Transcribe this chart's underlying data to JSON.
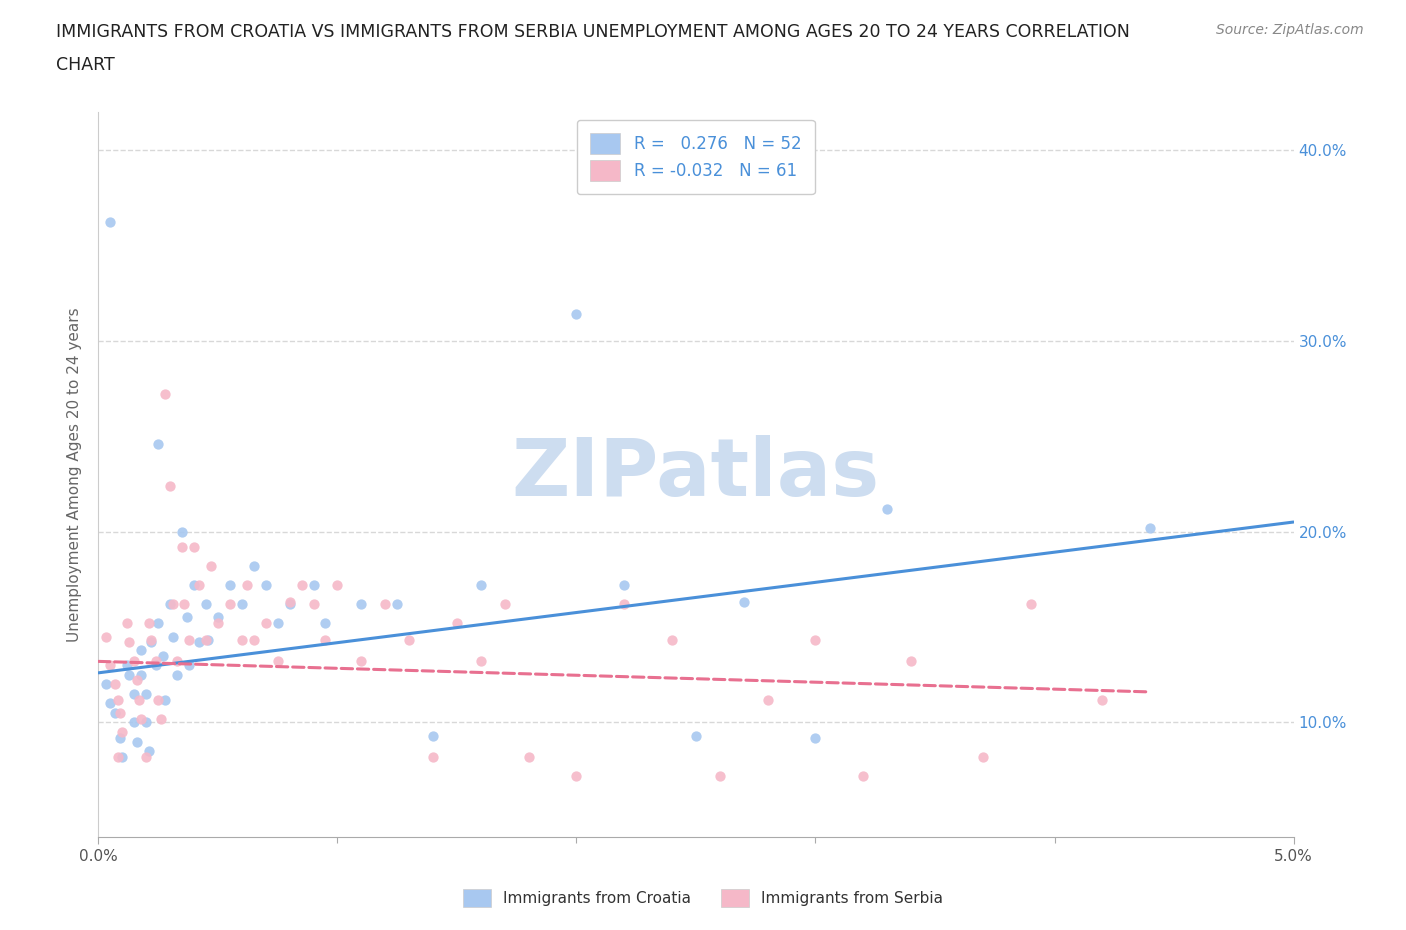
{
  "title_line1": "IMMIGRANTS FROM CROATIA VS IMMIGRANTS FROM SERBIA UNEMPLOYMENT AMONG AGES 20 TO 24 YEARS CORRELATION",
  "title_line2": "CHART",
  "source": "Source: ZipAtlas.com",
  "ylabel": "Unemployment Among Ages 20 to 24 years",
  "xlim": [
    0.0,
    0.05
  ],
  "ylim": [
    0.04,
    0.42
  ],
  "xticks_major": [
    0.0,
    0.05
  ],
  "xticks_minor": [
    0.01,
    0.02,
    0.03,
    0.04
  ],
  "xticklabels_major": [
    "0.0%",
    "5.0%"
  ],
  "ytick_positions": [
    0.1,
    0.2,
    0.3,
    0.4
  ],
  "yticklabels": [
    "10.0%",
    "20.0%",
    "30.0%",
    "40.0%"
  ],
  "background_color": "#ffffff",
  "watermark_text": "ZIPatlas",
  "watermark_color": "#cdddf0",
  "croatia_color": "#a8c8f0",
  "serbia_color": "#f5b8c8",
  "croatia_line_color": "#4a90d9",
  "serbia_line_color": "#e87090",
  "croatia_R": 0.276,
  "croatia_N": 52,
  "serbia_R": -0.032,
  "serbia_N": 61,
  "grid_color": "#d8d8d8",
  "croatia_scatter_x": [
    0.0003,
    0.0005,
    0.0007,
    0.0009,
    0.001,
    0.0012,
    0.0013,
    0.0015,
    0.0015,
    0.0016,
    0.0018,
    0.0018,
    0.002,
    0.002,
    0.0021,
    0.0022,
    0.0024,
    0.0025,
    0.0025,
    0.0027,
    0.0028,
    0.003,
    0.0031,
    0.0033,
    0.0035,
    0.0037,
    0.0038,
    0.004,
    0.0042,
    0.0045,
    0.0046,
    0.005,
    0.0055,
    0.006,
    0.0065,
    0.007,
    0.0075,
    0.008,
    0.009,
    0.0095,
    0.011,
    0.0125,
    0.014,
    0.016,
    0.02,
    0.022,
    0.025,
    0.027,
    0.03,
    0.033,
    0.044,
    0.0005
  ],
  "croatia_scatter_y": [
    0.12,
    0.11,
    0.105,
    0.092,
    0.082,
    0.13,
    0.125,
    0.115,
    0.1,
    0.09,
    0.138,
    0.125,
    0.115,
    0.1,
    0.085,
    0.142,
    0.13,
    0.246,
    0.152,
    0.135,
    0.112,
    0.162,
    0.145,
    0.125,
    0.2,
    0.155,
    0.13,
    0.172,
    0.142,
    0.162,
    0.143,
    0.155,
    0.172,
    0.162,
    0.182,
    0.172,
    0.152,
    0.162,
    0.172,
    0.152,
    0.162,
    0.162,
    0.093,
    0.172,
    0.314,
    0.172,
    0.093,
    0.163,
    0.092,
    0.212,
    0.202,
    0.362
  ],
  "serbia_scatter_x": [
    0.0003,
    0.0005,
    0.0007,
    0.0008,
    0.0009,
    0.001,
    0.0012,
    0.0013,
    0.0015,
    0.0016,
    0.0017,
    0.0018,
    0.002,
    0.0021,
    0.0022,
    0.0024,
    0.0025,
    0.0026,
    0.0028,
    0.003,
    0.0031,
    0.0033,
    0.0035,
    0.0036,
    0.0038,
    0.004,
    0.0042,
    0.0045,
    0.0047,
    0.005,
    0.0055,
    0.006,
    0.0062,
    0.0065,
    0.007,
    0.0075,
    0.008,
    0.0085,
    0.009,
    0.0095,
    0.01,
    0.011,
    0.012,
    0.013,
    0.014,
    0.015,
    0.016,
    0.017,
    0.018,
    0.02,
    0.022,
    0.024,
    0.026,
    0.028,
    0.03,
    0.032,
    0.034,
    0.037,
    0.039,
    0.042,
    0.0008
  ],
  "serbia_scatter_y": [
    0.145,
    0.13,
    0.12,
    0.112,
    0.105,
    0.095,
    0.152,
    0.142,
    0.132,
    0.122,
    0.112,
    0.102,
    0.082,
    0.152,
    0.143,
    0.132,
    0.112,
    0.102,
    0.272,
    0.224,
    0.162,
    0.132,
    0.192,
    0.162,
    0.143,
    0.192,
    0.172,
    0.143,
    0.182,
    0.152,
    0.162,
    0.143,
    0.172,
    0.143,
    0.152,
    0.132,
    0.163,
    0.172,
    0.162,
    0.143,
    0.172,
    0.132,
    0.162,
    0.143,
    0.082,
    0.152,
    0.132,
    0.162,
    0.082,
    0.072,
    0.162,
    0.143,
    0.072,
    0.112,
    0.143,
    0.072,
    0.132,
    0.082,
    0.162,
    0.112,
    0.082
  ],
  "croatia_trendline_x": [
    0.0,
    0.05
  ],
  "croatia_trendline_y": [
    0.126,
    0.205
  ],
  "serbia_trendline_x": [
    0.0,
    0.044
  ],
  "serbia_trendline_y": [
    0.132,
    0.116
  ],
  "legend_labels": [
    "Immigrants from Croatia",
    "Immigrants from Serbia"
  ]
}
